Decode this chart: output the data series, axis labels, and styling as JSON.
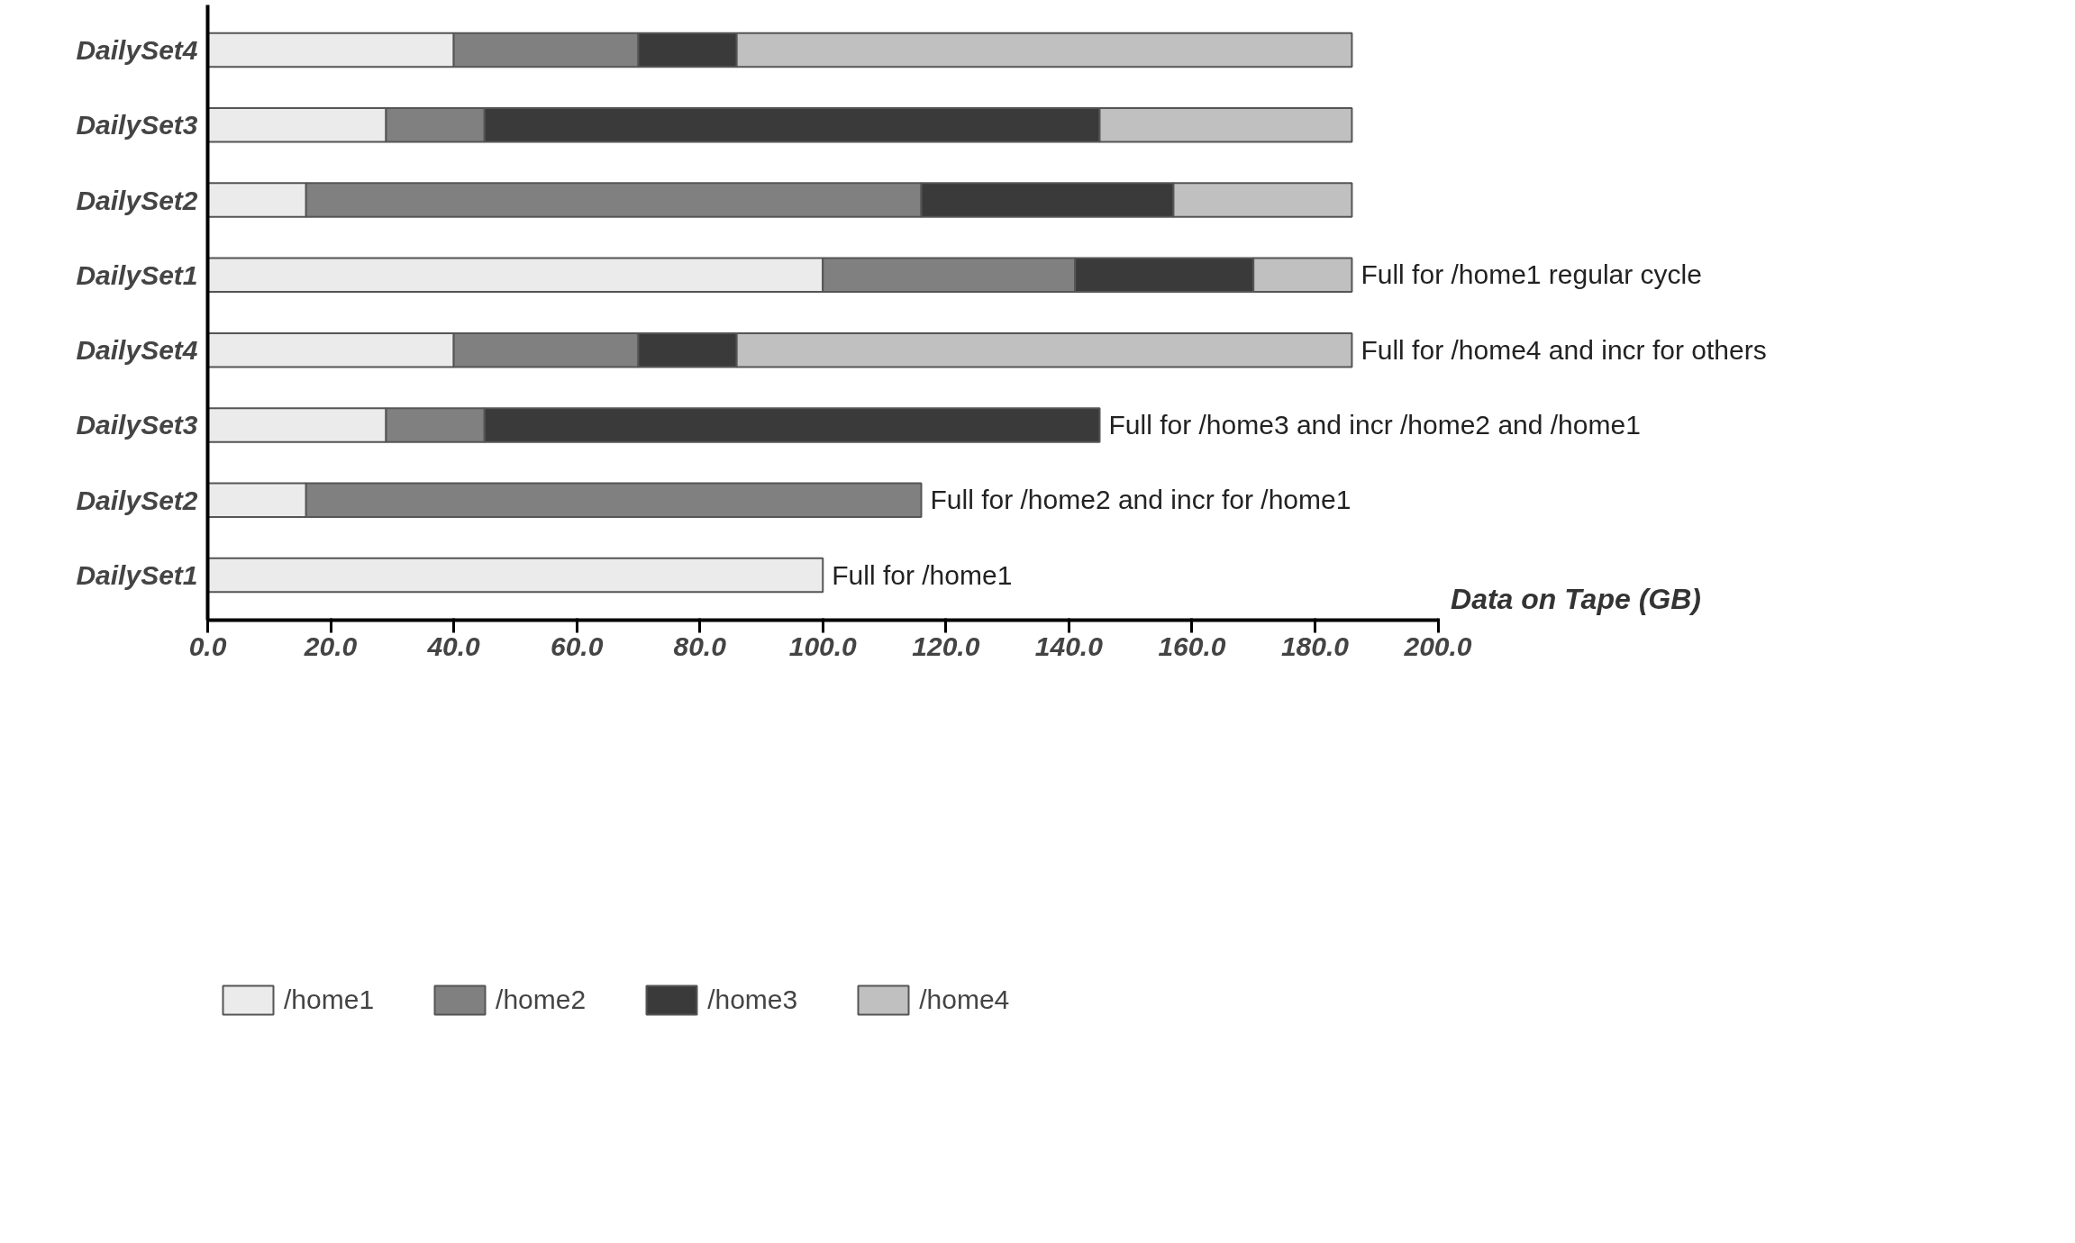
{
  "chart_data": {
    "type": "bar",
    "orientation": "horizontal",
    "stacked": true,
    "categories": [
      "DailySet4",
      "DailySet3",
      "DailySet2",
      "DailySet1",
      "DailySet4",
      "DailySet3",
      "DailySet2",
      "DailySet1"
    ],
    "series": [
      {
        "name": "/home1",
        "color": "#ebebeb",
        "values": [
          40,
          29,
          16,
          100,
          40,
          29,
          16,
          100
        ]
      },
      {
        "name": "/home2",
        "color": "#808080",
        "values": [
          30,
          16,
          100,
          41,
          30,
          16,
          100,
          null
        ]
      },
      {
        "name": "/home3",
        "color": "#3a3a3a",
        "values": [
          16,
          100,
          41,
          29,
          16,
          100,
          null,
          null
        ]
      },
      {
        "name": "/home4",
        "color": "#c0c0c0",
        "values": [
          100,
          41,
          29,
          16,
          100,
          null,
          null,
          null
        ]
      }
    ],
    "xlabel": "Data on Tape (GB)",
    "xlim": [
      0,
      200
    ],
    "xticks": [
      {
        "value": 0,
        "label": "0.0"
      },
      {
        "value": 20,
        "label": "20.0"
      },
      {
        "value": 40,
        "label": "40.0"
      },
      {
        "value": 60,
        "label": "60.0"
      },
      {
        "value": 80,
        "label": "80.0"
      },
      {
        "value": 100,
        "label": "100.0"
      },
      {
        "value": 120,
        "label": "120.0"
      },
      {
        "value": 140,
        "label": "140.0"
      },
      {
        "value": 160,
        "label": "160.0"
      },
      {
        "value": 180,
        "label": "180.0"
      },
      {
        "value": 200,
        "label": "200.0"
      }
    ],
    "annotations": [
      "Full for /home1 regular cycle",
      "Full for /home4 and incr for others",
      "Full for /home3 and incr /home2 and /home1",
      "Full for /home2 and incr for /home1",
      "Full for /home1"
    ],
    "legend": "bottom left",
    "grid": false
  }
}
